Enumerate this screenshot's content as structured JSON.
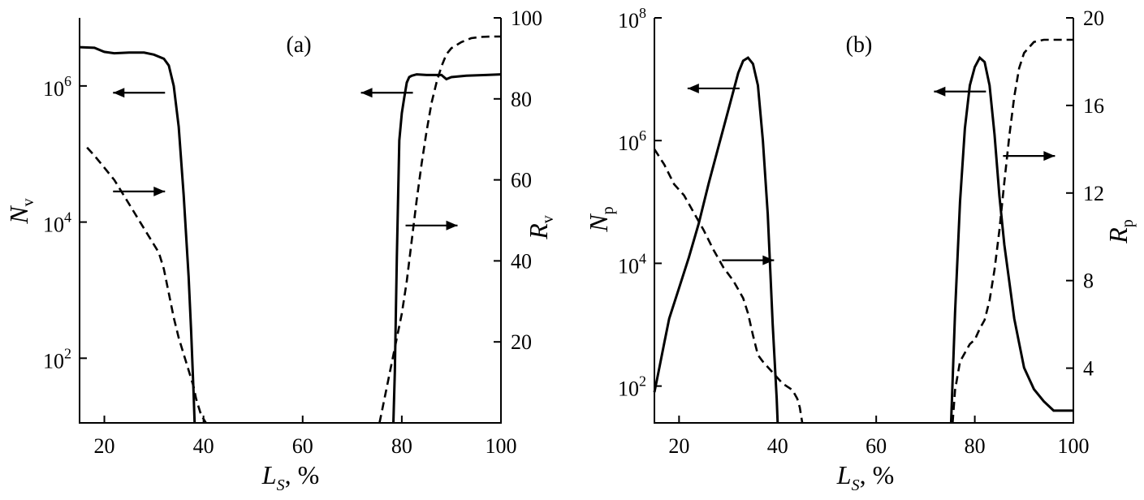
{
  "chart_data": [
    {
      "type": "line",
      "panel_label": "(a)",
      "xlabel": "L",
      "xlabel_sub": "S",
      "xlabel_suffix": ", %",
      "ylabel_left": "N",
      "ylabel_left_sub": "v",
      "ylabel_right": "R",
      "ylabel_right_sub": "v",
      "x_ticks": [
        "20",
        "40",
        "60",
        "80",
        "100"
      ],
      "left_ticks": [
        {
          "base": "10",
          "exp": "2"
        },
        {
          "base": "10",
          "exp": "4"
        },
        {
          "base": "10",
          "exp": "6"
        }
      ],
      "right_ticks": [
        "20",
        "40",
        "60",
        "80",
        "100"
      ],
      "xlim": [
        15,
        100
      ],
      "ylim_left_log10": [
        1.05,
        7.0
      ],
      "ylim_right": [
        0,
        100
      ],
      "grid": false,
      "series": [
        {
          "axis": "left",
          "style": "solid",
          "x": [
            15,
            18,
            20,
            22,
            25,
            28,
            30,
            32,
            33,
            34,
            35,
            36,
            37,
            37.5,
            38,
            38.2
          ],
          "y": [
            6.57,
            6.56,
            6.5,
            6.48,
            6.49,
            6.49,
            6.46,
            6.4,
            6.3,
            6.0,
            5.4,
            4.4,
            3.2,
            2.4,
            1.5,
            1.05
          ]
        },
        {
          "axis": "left",
          "style": "solid",
          "x": [
            78.3,
            78.6,
            79,
            79.5,
            80,
            80.5,
            81,
            81.5,
            82,
            83,
            85,
            88,
            89,
            90,
            93,
            97,
            100
          ],
          "y": [
            1.05,
            1.8,
            3.5,
            5.2,
            5.6,
            5.83,
            6.05,
            6.13,
            6.15,
            6.17,
            6.16,
            6.16,
            6.1,
            6.13,
            6.15,
            6.16,
            6.17
          ]
        },
        {
          "axis": "right",
          "style": "dashed",
          "x": [
            16.5,
            18,
            20,
            22,
            24,
            26,
            28,
            30,
            31,
            32,
            33,
            34,
            35,
            36,
            37,
            38,
            38.5,
            39,
            39.5,
            40,
            40.5
          ],
          "y": [
            68,
            66,
            63,
            60,
            56,
            52,
            48,
            44,
            42,
            38,
            32,
            26,
            21,
            17,
            13,
            9,
            6,
            4,
            2,
            1,
            0
          ]
        },
        {
          "axis": "right",
          "style": "dashed",
          "x": [
            75.5,
            76,
            77,
            78,
            79,
            80,
            81,
            82,
            83,
            84,
            85,
            86,
            87,
            88,
            89,
            90,
            92,
            94,
            96,
            98,
            100
          ],
          "y": [
            0,
            3,
            9,
            15,
            21,
            27,
            35,
            45,
            55,
            64,
            72,
            79,
            84,
            88,
            91,
            92.5,
            94,
            95,
            95.3,
            95.4,
            95.4
          ]
        }
      ],
      "annotations": [
        {
          "text": "←",
          "x_data": 27,
          "y_log": 5.9,
          "direction": "left"
        },
        {
          "text": "→",
          "x_data": 27,
          "y_log": 4.45,
          "direction": "right"
        },
        {
          "text": "←",
          "x_data": 77,
          "y_log": 5.9,
          "direction": "left"
        },
        {
          "text": "→",
          "x_data": 86,
          "y_log": 3.95,
          "direction": "right"
        }
      ]
    },
    {
      "type": "line",
      "panel_label": "(b)",
      "xlabel": "L",
      "xlabel_sub": "S",
      "xlabel_suffix": ", %",
      "ylabel_left": "N",
      "ylabel_left_sub": "p",
      "ylabel_right": "R",
      "ylabel_right_sub": "p",
      "x_ticks": [
        "20",
        "40",
        "60",
        "80",
        "100"
      ],
      "left_ticks": [
        {
          "base": "10",
          "exp": "2"
        },
        {
          "base": "10",
          "exp": "4"
        },
        {
          "base": "10",
          "exp": "6"
        },
        {
          "base": "10",
          "exp": "8"
        }
      ],
      "right_ticks": [
        "4",
        "8",
        "12",
        "16",
        "20"
      ],
      "xlim": [
        15,
        100
      ],
      "ylim_left_log10": [
        1.4,
        8.0
      ],
      "ylim_right": [
        1.5,
        20
      ],
      "grid": false,
      "series": [
        {
          "axis": "left",
          "style": "solid",
          "x": [
            15,
            16,
            17,
            18,
            20,
            22,
            24,
            26,
            28,
            30,
            32,
            33,
            34,
            35,
            36,
            37,
            38,
            39,
            39.8,
            40
          ],
          "y": [
            1.9,
            2.3,
            2.7,
            3.1,
            3.6,
            4.1,
            4.65,
            5.3,
            5.9,
            6.5,
            7.1,
            7.3,
            7.35,
            7.25,
            6.9,
            6.0,
            4.8,
            3.0,
            1.8,
            1.4
          ]
        },
        {
          "axis": "left",
          "style": "solid",
          "x": [
            75.2,
            76,
            77,
            78,
            79,
            80,
            81,
            82,
            83,
            84,
            85,
            86,
            87,
            88,
            89,
            90,
            92,
            94,
            96,
            98,
            100
          ],
          "y": [
            1.4,
            3.2,
            5.0,
            6.2,
            6.9,
            7.2,
            7.35,
            7.28,
            6.9,
            6.1,
            5.1,
            4.3,
            3.7,
            3.1,
            2.7,
            2.3,
            1.95,
            1.75,
            1.6,
            1.6,
            1.6
          ]
        },
        {
          "axis": "right",
          "style": "dashed",
          "x": [
            15,
            17,
            19,
            21,
            23,
            25,
            27,
            29,
            31,
            33,
            34,
            35,
            36,
            37,
            39,
            41,
            43,
            44,
            44.5,
            45
          ],
          "y": [
            14,
            13.3,
            12.4,
            11.9,
            11.1,
            10.3,
            9.4,
            8.6,
            8.0,
            7.2,
            6.5,
            5.5,
            4.6,
            4.3,
            3.8,
            3.3,
            3.0,
            2.6,
            2.2,
            1.5
          ]
        },
        {
          "axis": "right",
          "style": "dashed",
          "x": [
            75.5,
            76,
            77,
            78,
            79,
            80,
            81,
            82,
            83,
            84,
            85,
            86,
            87,
            88,
            89,
            90,
            92,
            94,
            96,
            98,
            100
          ],
          "y": [
            1.5,
            3.0,
            4.3,
            4.7,
            5.1,
            5.3,
            5.8,
            6.2,
            7.1,
            8.5,
            10.3,
            12.5,
            14.6,
            16.4,
            17.7,
            18.4,
            18.9,
            19.0,
            19.0,
            19.0,
            19.0
          ]
        }
      ],
      "annotations": [
        {
          "text": "←",
          "x_data": 27,
          "y_log": 6.85,
          "direction": "left"
        },
        {
          "text": "→",
          "x_data": 34,
          "y_log": 4.05,
          "direction": "right"
        },
        {
          "text": "←",
          "x_data": 77,
          "y_log": 6.8,
          "direction": "left"
        },
        {
          "text": "→",
          "x_data": 91,
          "y_log": 5.75,
          "direction": "right"
        }
      ]
    }
  ]
}
